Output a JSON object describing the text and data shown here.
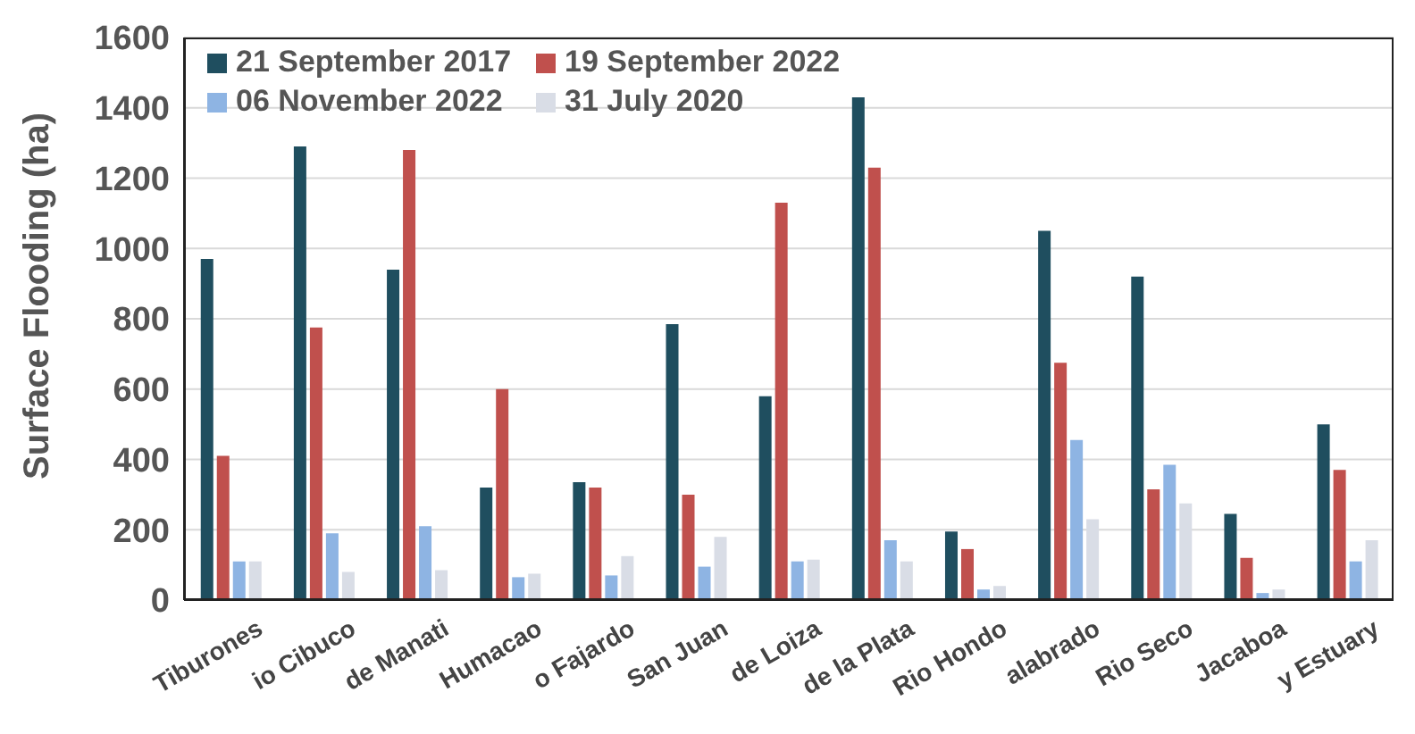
{
  "chart_data": {
    "type": "bar",
    "ylabel": "Surface Flooding (ha)",
    "categories": [
      "Tiburones",
      "io Cibuco",
      "de Manati",
      "Humacao",
      "o Fajardo",
      "San Juan",
      "de Loiza",
      "de la Plata",
      "Rio Hondo",
      "alabrado",
      "Rio Seco",
      "Jacaboa",
      "y Estuary"
    ],
    "series": [
      {
        "name": "21 September 2017",
        "color": "#1f4e5f",
        "values": [
          970,
          1290,
          940,
          320,
          335,
          785,
          580,
          1430,
          195,
          1050,
          920,
          245,
          500
        ]
      },
      {
        "name": "19 September 2022",
        "color": "#c0504d",
        "values": [
          410,
          775,
          1280,
          600,
          320,
          300,
          1130,
          1230,
          145,
          675,
          315,
          120,
          370
        ]
      },
      {
        "name": "06 November 2022",
        "color": "#8eb4e3",
        "values": [
          110,
          190,
          210,
          65,
          70,
          95,
          110,
          170,
          30,
          455,
          385,
          20,
          110
        ]
      },
      {
        "name": "31 July 2020",
        "color": "#d9dde6",
        "values": [
          110,
          80,
          85,
          75,
          125,
          180,
          115,
          110,
          40,
          230,
          275,
          30,
          170
        ]
      }
    ],
    "ylim": [
      0,
      1600
    ],
    "yticks": [
      0,
      200,
      400,
      600,
      800,
      1000,
      1200,
      1400,
      1600
    ],
    "grid": "y",
    "legend": "top left"
  }
}
